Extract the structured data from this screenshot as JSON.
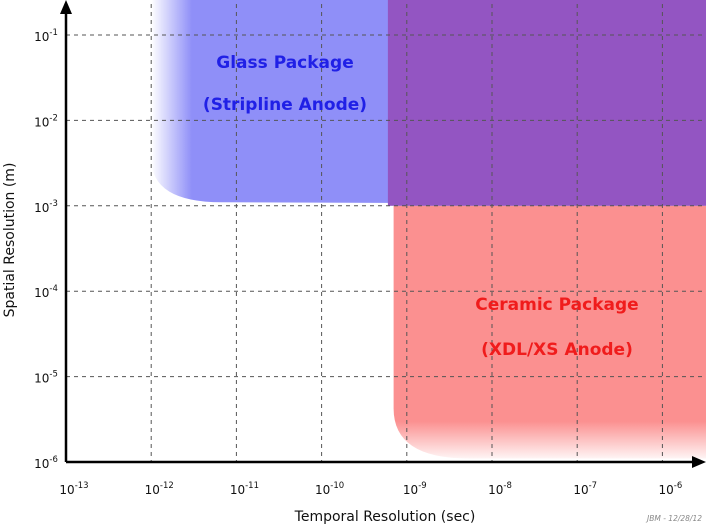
{
  "chart_data": {
    "type": "area",
    "xlabel": "Temporal Resolution (sec)",
    "ylabel": "Spatial Resolution (m)",
    "x_scale": "log",
    "y_scale": "log",
    "xlim": [
      1e-13,
      5e-06
    ],
    "ylim": [
      1e-06,
      0.35
    ],
    "grid": true,
    "x_ticks": [
      {
        "base": "10",
        "exp": "-13"
      },
      {
        "base": "10",
        "exp": "-12"
      },
      {
        "base": "10",
        "exp": "-11"
      },
      {
        "base": "10",
        "exp": "-10"
      },
      {
        "base": "10",
        "exp": "-9"
      },
      {
        "base": "10",
        "exp": "-8"
      },
      {
        "base": "10",
        "exp": "-7"
      },
      {
        "base": "10",
        "exp": "-6"
      }
    ],
    "y_ticks": [
      {
        "base": "10",
        "exp": "-1"
      },
      {
        "base": "10",
        "exp": "-2"
      },
      {
        "base": "10",
        "exp": "-3"
      },
      {
        "base": "10",
        "exp": "-4"
      },
      {
        "base": "10",
        "exp": "-5"
      },
      {
        "base": "10",
        "exp": "-6"
      }
    ],
    "regions": [
      {
        "name": "glass",
        "label_lines": [
          "Glass Package",
          "(Stripline Anode)"
        ],
        "color": "#8f8ff8",
        "label_color": "#2020e6",
        "x_min": 1e-12,
        "y_floor": 0.0011,
        "y_max": 0.35,
        "x_fade_to": 3e-12
      },
      {
        "name": "ceramic",
        "label_lines": [
          "Ceramic Package",
          "(XDL/XS Anode)"
        ],
        "color": "#fb9090",
        "label_color": "#f01c1c",
        "x_min": 7e-10,
        "y_floor": 1.1e-06,
        "y_max": 0.001,
        "y_fade_to": 3e-06
      }
    ],
    "overlap_color": "#9355c2",
    "overlap": {
      "x_min": 6e-10,
      "y_min": 0.001
    }
  },
  "credit": "JBM - 12/28/12"
}
